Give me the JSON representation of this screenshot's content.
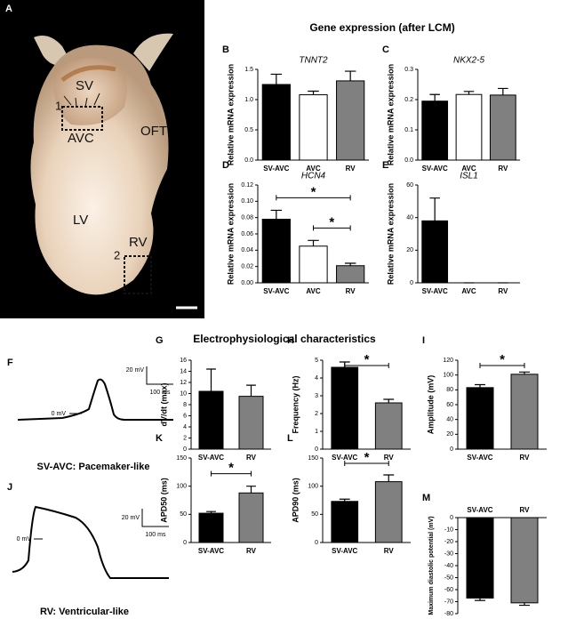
{
  "photo": {
    "panel": "A",
    "labels": [
      "SV",
      "1",
      "AVC",
      "OFT",
      "LV",
      "RV",
      "2"
    ]
  },
  "headers": {
    "gene": "Gene expression (after LCM)",
    "ephys": "Electrophysiological characteristics"
  },
  "traces": [
    {
      "panel": "F",
      "scale_v": "20 mV",
      "scale_t": "100 ms",
      "zero": "0 mV",
      "caption": "SV-AVC: Pacemaker-like"
    },
    {
      "panel": "J",
      "scale_v": "20 mV",
      "scale_t": "100 ms",
      "zero": "0 mV",
      "caption": "RV: Ventricular-like"
    }
  ],
  "chart_data": [
    {
      "type": "bar",
      "panel": "B",
      "title": "TNNT2",
      "ylabel": "Relative mRNA expression",
      "categories": [
        "SV-AVC",
        "AVC",
        "RV"
      ],
      "values": [
        1.25,
        1.08,
        1.31
      ],
      "errors": [
        0.17,
        0.06,
        0.16
      ],
      "colors": [
        "#000000",
        "#ffffff",
        "#808080"
      ],
      "ylim": [
        0,
        1.5
      ],
      "yticks": [
        {
          "value": 0,
          "label": "0.0"
        },
        0.5,
        {
          "value": 1,
          "label": "1.0"
        },
        1.5
      ]
    },
    {
      "type": "bar",
      "panel": "C",
      "title": "NKX2-5",
      "ylabel": "Relative mRNA expression",
      "categories": [
        "SV-AVC",
        "AVC",
        "RV"
      ],
      "values": [
        0.195,
        0.217,
        0.215
      ],
      "errors": [
        0.022,
        0.01,
        0.022
      ],
      "colors": [
        "#000000",
        "#ffffff",
        "#808080"
      ],
      "ylim": [
        0,
        0.3
      ],
      "yticks": [
        {
          "value": 0,
          "label": "0.0"
        },
        0.1,
        0.2,
        0.3
      ]
    },
    {
      "type": "bar",
      "panel": "D",
      "title": "HCN4",
      "ylabel": "Relative mRNA expression",
      "categories": [
        "SV-AVC",
        "AVC",
        "RV"
      ],
      "values": [
        0.078,
        0.045,
        0.021
      ],
      "errors": [
        0.011,
        0.007,
        0.003
      ],
      "colors": [
        "#000000",
        "#ffffff",
        "#808080"
      ],
      "ylim": [
        0,
        0.12
      ],
      "yticks": [
        {
          "value": 0,
          "label": "0.00"
        },
        0.02,
        0.04,
        0.06,
        0.08,
        {
          "value": 0.1,
          "label": "0.10"
        },
        0.12
      ],
      "significance": [
        {
          "label": "*",
          "categories": [
            "SV-AVC",
            "RV"
          ]
        },
        {
          "label": "*",
          "categories": [
            "AVC",
            "RV"
          ]
        }
      ]
    },
    {
      "type": "bar",
      "panel": "E",
      "title": "ISL1",
      "ylabel": "Relative mRNA expression",
      "categories": [
        "SV-AVC",
        "AVC",
        "RV"
      ],
      "values": [
        38,
        0,
        0
      ],
      "errors": [
        14,
        0,
        0
      ],
      "colors": [
        "#000000",
        "#ffffff",
        "#808080"
      ],
      "ylim": [
        0,
        60
      ],
      "yticks": [
        0,
        20,
        40,
        60
      ]
    },
    {
      "type": "bar",
      "panel": "G",
      "ylabel": "dV/dt (max)",
      "categories": [
        "SV-AVC",
        "RV"
      ],
      "values": [
        10.4,
        9.5
      ],
      "errors": [
        4,
        2
      ],
      "colors": [
        "#000000",
        "#808080"
      ],
      "ylim": [
        0,
        16
      ],
      "yticks": [
        0,
        2,
        4,
        6,
        8,
        10,
        12,
        14,
        16
      ]
    },
    {
      "type": "bar",
      "panel": "H",
      "ylabel": "Frequency (Hz)",
      "categories": [
        "SV-AVC",
        "RV"
      ],
      "values": [
        4.6,
        2.6
      ],
      "errors": [
        0.3,
        0.2
      ],
      "colors": [
        "#000000",
        "#808080"
      ],
      "ylim": [
        0,
        5
      ],
      "yticks": [
        0,
        1,
        2,
        3,
        4,
        5
      ],
      "significance": [
        {
          "label": "*",
          "categories": [
            "SV-AVC",
            "RV"
          ]
        }
      ]
    },
    {
      "type": "bar",
      "panel": "I",
      "ylabel": "Amplitude (mV)",
      "categories": [
        "SV-AVC",
        "RV"
      ],
      "values": [
        83,
        101
      ],
      "errors": [
        4,
        3
      ],
      "colors": [
        "#000000",
        "#808080"
      ],
      "ylim": [
        0,
        120
      ],
      "yticks": [
        0,
        20,
        40,
        60,
        80,
        100,
        120
      ],
      "significance": [
        {
          "label": "*",
          "categories": [
            "SV-AVC",
            "RV"
          ]
        }
      ]
    },
    {
      "type": "bar",
      "panel": "K",
      "ylabel": "APD50 (ms)",
      "categories": [
        "SV-AVC",
        "RV"
      ],
      "values": [
        52,
        88
      ],
      "errors": [
        3,
        12
      ],
      "colors": [
        "#000000",
        "#808080"
      ],
      "ylim": [
        0,
        150
      ],
      "yticks": [
        0,
        50,
        100,
        150
      ],
      "significance": [
        {
          "label": "*",
          "categories": [
            "SV-AVC",
            "RV"
          ]
        }
      ]
    },
    {
      "type": "bar",
      "panel": "L",
      "ylabel": "APD90 (ms)",
      "categories": [
        "SV-AVC",
        "RV"
      ],
      "values": [
        73,
        108
      ],
      "errors": [
        4,
        12
      ],
      "colors": [
        "#000000",
        "#808080"
      ],
      "ylim": [
        0,
        150
      ],
      "yticks": [
        0,
        50,
        100,
        150
      ],
      "significance": [
        {
          "label": "*",
          "categories": [
            "SV-AVC",
            "RV"
          ]
        }
      ]
    },
    {
      "type": "bar",
      "panel": "M",
      "ylabel": "Maximum diastolic potential (mV)",
      "categories": [
        "SV-AVC",
        "RV"
      ],
      "values": [
        -67,
        -71
      ],
      "errors": [
        2,
        2
      ],
      "colors": [
        "#000000",
        "#808080"
      ],
      "ylim": [
        -80,
        0
      ],
      "yticks": [
        -80,
        -70,
        -60,
        -50,
        -40,
        -30,
        -20,
        -10,
        0
      ],
      "xlabel_position": "top"
    }
  ]
}
